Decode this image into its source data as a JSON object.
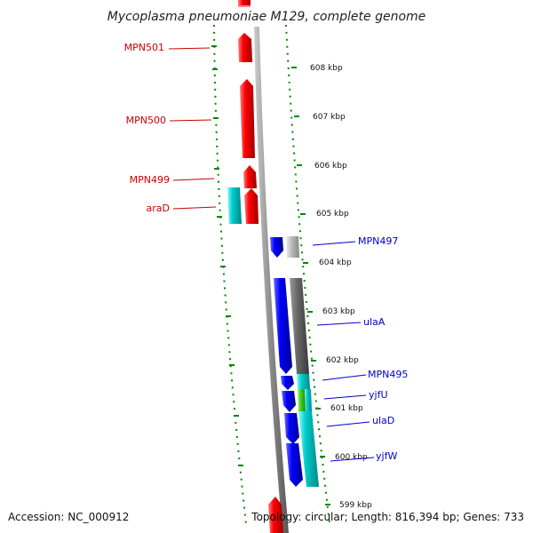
{
  "title": "Mycoplasma pneumoniae M129, complete genome",
  "footer": {
    "accession": "Accession: NC_000912",
    "summary": "Topology: circular; Length: 816,394 bp; Genes: 733"
  },
  "colors": {
    "forward": "#ff0000",
    "reverse": "#0000ff",
    "cog_cyan": "#00cccc",
    "cog_gray_light": "#bbbbbb",
    "cog_gray_dark": "#666666",
    "cog_green": "#44cc22",
    "backbone": "#888888",
    "ticks": "#008800",
    "left_label": "#cc0000",
    "right_label": "#0000cc"
  },
  "ticks": [
    "608 kbp",
    "607 kbp",
    "606 kbp",
    "605 kbp",
    "604 kbp",
    "603 kbp",
    "602 kbp",
    "601 kbp",
    "600 kbp",
    "599 kbp"
  ],
  "left_labels": [
    "MPN501",
    "MPN500",
    "MPN499",
    "araD"
  ],
  "right_labels": [
    "MPN497",
    "ulaA",
    "MPN495",
    "yjfU",
    "ulaD",
    "yjfW"
  ]
}
